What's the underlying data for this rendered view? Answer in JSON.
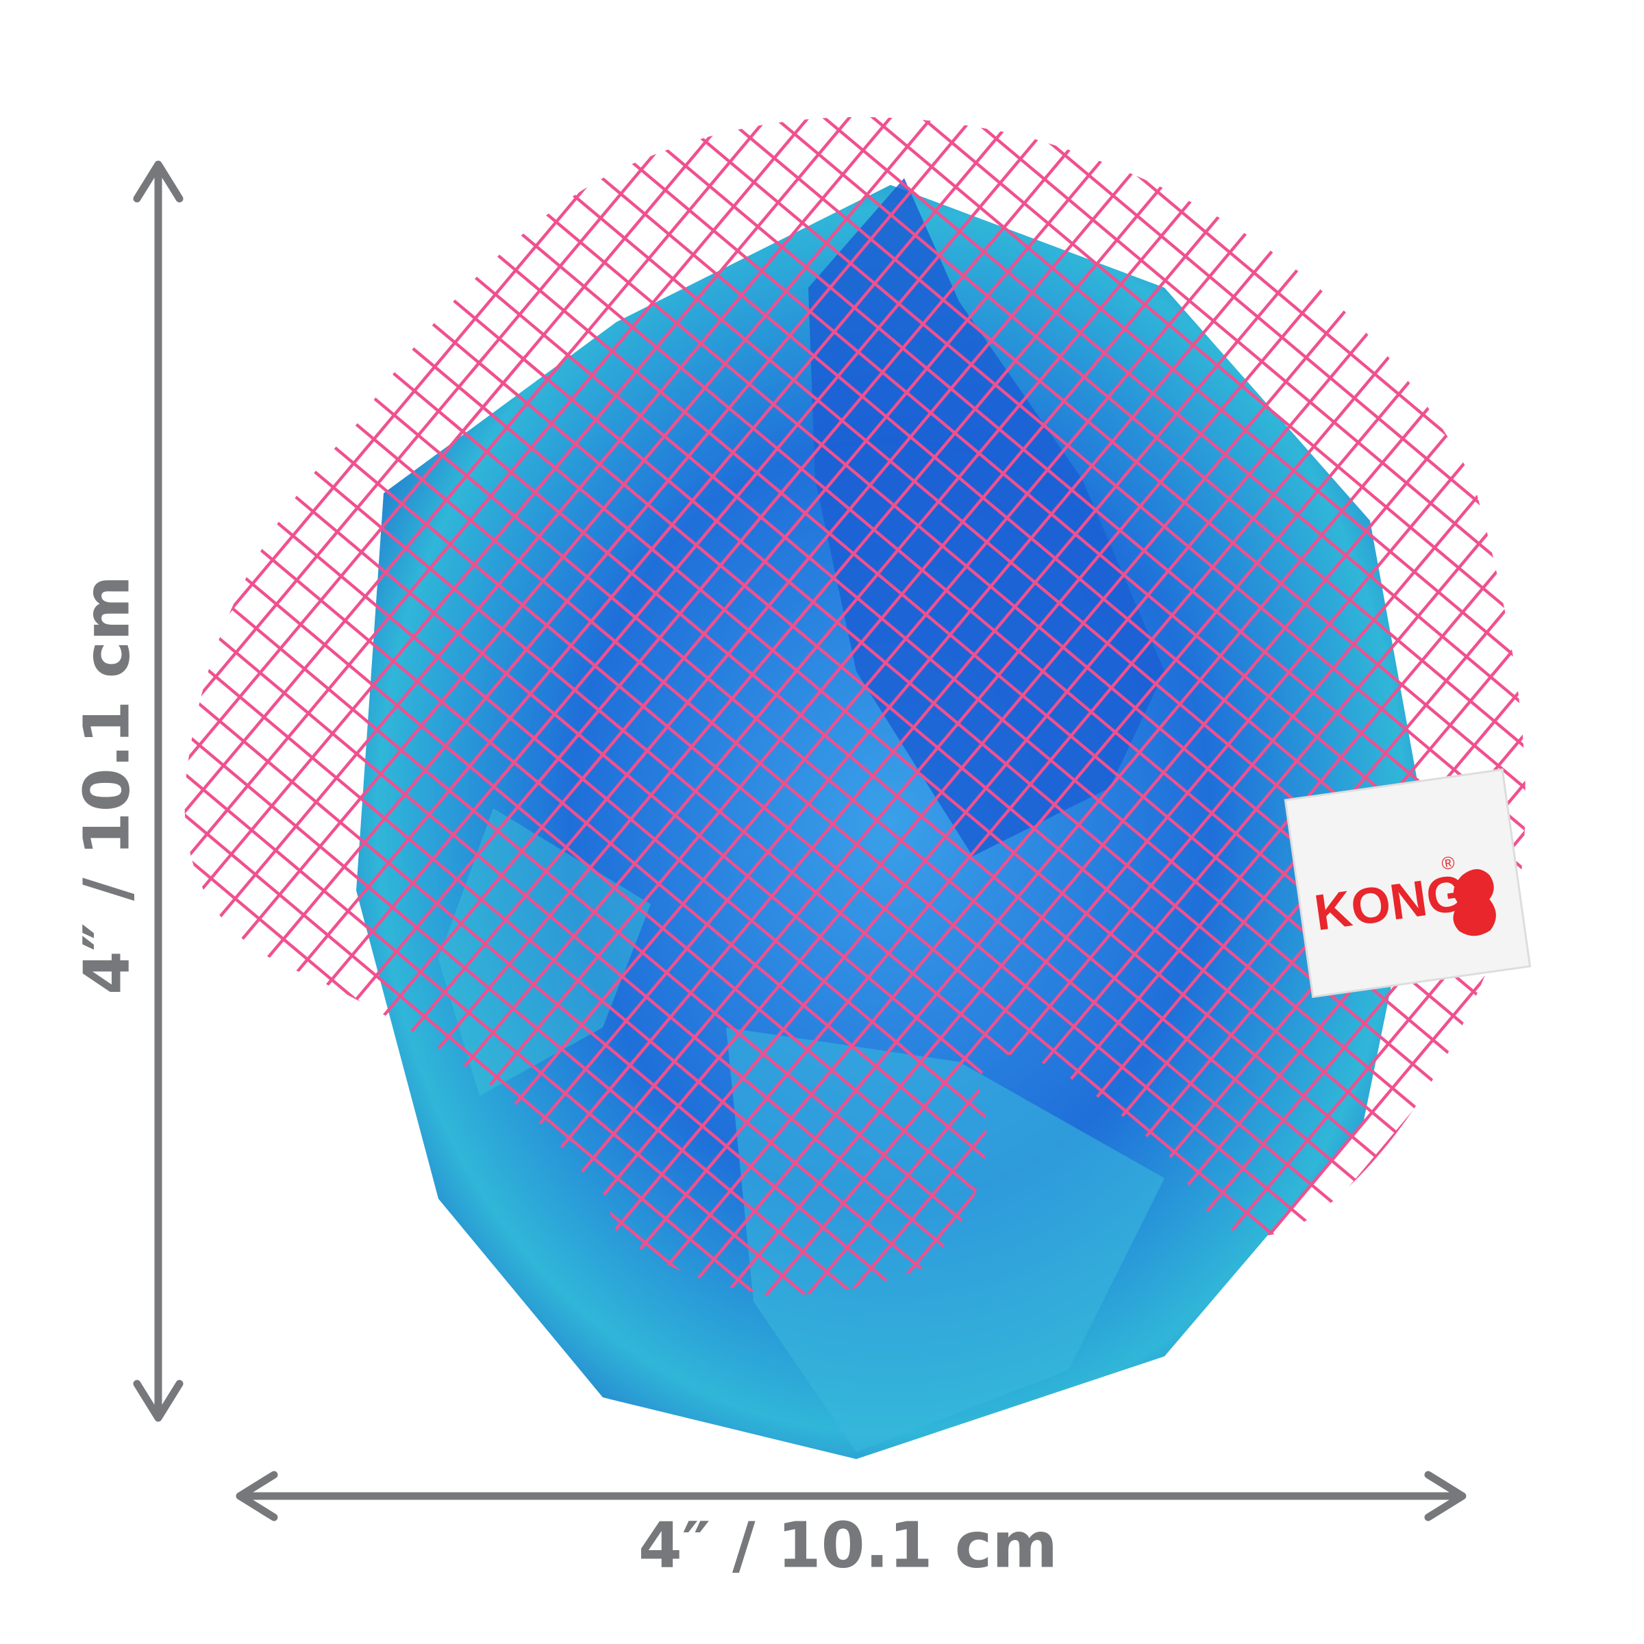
{
  "dimensions": {
    "height": "4″ / 10.1 cm",
    "width": "4″ / 10.1 cm"
  },
  "product": {
    "brand": "KONG",
    "trademark": "®"
  }
}
